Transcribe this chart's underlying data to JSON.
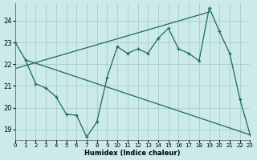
{
  "bg_color": "#cceaea",
  "grid_color": "#aacccc",
  "line_color": "#1a6b5a",
  "xlabel": "Humidex (Indice chaleur)",
  "xlim": [
    0,
    23
  ],
  "ylim": [
    18.5,
    24.8
  ],
  "yticks": [
    19,
    20,
    21,
    22,
    23,
    24
  ],
  "xticks": [
    0,
    1,
    2,
    3,
    4,
    5,
    6,
    7,
    8,
    9,
    10,
    11,
    12,
    13,
    14,
    15,
    16,
    17,
    18,
    19,
    20,
    21,
    22,
    23
  ],
  "main_x": [
    0,
    1,
    2,
    3,
    4,
    5,
    6,
    7,
    8,
    9,
    10,
    11,
    12,
    13,
    14,
    15,
    16,
    17,
    18,
    19,
    20,
    21,
    22,
    23
  ],
  "main_y": [
    23.0,
    22.2,
    21.1,
    20.9,
    20.5,
    19.7,
    19.65,
    18.65,
    19.35,
    21.4,
    22.8,
    22.5,
    22.7,
    22.5,
    23.2,
    23.65,
    22.7,
    22.5,
    22.15,
    24.6,
    23.5,
    22.5,
    20.4,
    18.75
  ],
  "upper_line_x": [
    0,
    19
  ],
  "upper_line_y": [
    21.8,
    24.4
  ],
  "lower_line_x": [
    1,
    23
  ],
  "lower_line_y": [
    22.2,
    18.75
  ]
}
